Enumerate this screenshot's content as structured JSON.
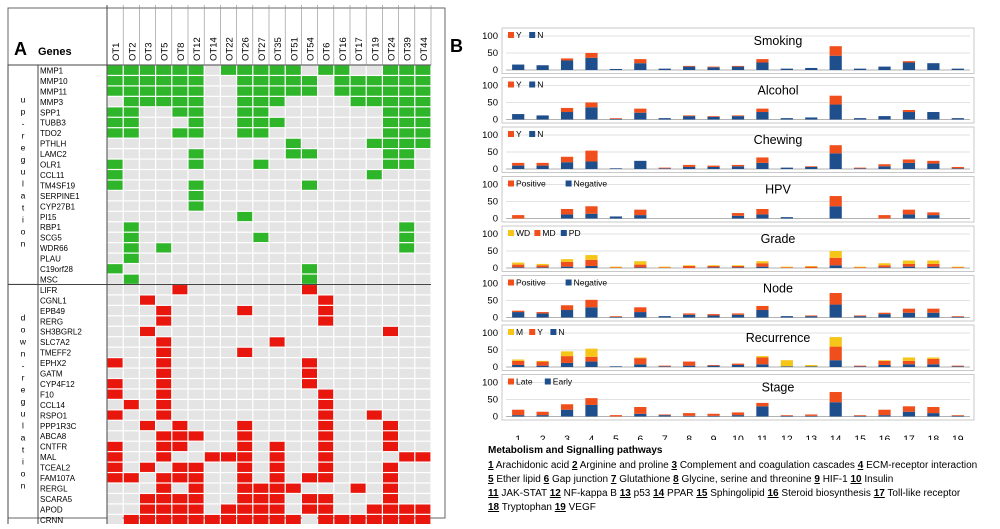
{
  "panelA": {
    "label": "A",
    "genes_header": "Genes",
    "columns": [
      "OT1",
      "OT2",
      "OT3",
      "OT5",
      "OT8",
      "OT12",
      "OT14",
      "OT22",
      "OT26",
      "OT27",
      "OT35",
      "OT51",
      "OT54",
      "OT6",
      "OT16",
      "OT17",
      "OT19",
      "OT24",
      "OT39",
      "OT44"
    ],
    "groups": [
      {
        "label": "up-regulation",
        "rows": [
          0,
          20
        ]
      },
      {
        "label": "down-regulation",
        "rows": [
          21,
          43
        ]
      }
    ],
    "genes": [
      "MMP1",
      "MMP10",
      "MMP11",
      "MMP3",
      "SPP1",
      "TUBB3",
      "TDO2",
      "PTHLH",
      "LAMC2",
      "OLR1",
      "CCL11",
      "TM4SF19",
      "SERPINE1",
      "CYP27B1",
      "PI15",
      "RBP1",
      "SCG5",
      "WDR66",
      "PLAU",
      "C19orf28",
      "MSC",
      "LIFR",
      "CGNL1",
      "EPB49",
      "RERG",
      "SH3BGRL2",
      "SLC7A2",
      "TMEFF2",
      "EPHX2",
      "GATM",
      "CYP4F12",
      "F10",
      "CCL14",
      "RSPO1",
      "PPP1R3C",
      "ABCA8",
      "CNTFR",
      "MAL",
      "TCEAL2",
      "FAM107A",
      "RERGL",
      "SCARA5",
      "APOD",
      "CRNN"
    ],
    "up_color": "#2fb52a",
    "down_color": "#e8160c",
    "empty_color": "#e4e4e4",
    "matrix": [
      "11111101111101100111",
      "11111100111110111111",
      "11111100111110111111",
      "01111100111000011111",
      "11001100110000000111",
      "11000100111000000111",
      "11001100110000000111",
      "00000000000100001111",
      "00000100000110000110",
      "10000100010000000110",
      "10000000000000001000",
      "10000100000010000000",
      "00000100000000000000",
      "00000100000000000000",
      "00000000100000000000",
      "01000000000000000010",
      "01000000010000000010",
      "01010000000000000010",
      "01000000000000000000",
      "10000000000010000000",
      "01000000000010000000",
      "00001000000010000000",
      "00100000000001000000",
      "00010000100001000000",
      "00010000000001000000",
      "00100000000000000100",
      "00010000001000000000",
      "00010000100000000000",
      "10010000000010000000",
      "00010000000010000000",
      "10010000000010000000",
      "10010000000001000000",
      "01010000000001000000",
      "10010000000001001000",
      "00101000100001000100",
      "00011100100001000100",
      "10011000101001000100",
      "10010011101001000011",
      "10101100101001000100",
      "11011100101011000100",
      "00010100111100010100",
      "00111100111011000100",
      "00111101111011001111",
      "01111111111101111111"
    ]
  },
  "panelB": {
    "label": "B",
    "pathway_title": "Metabolism and Signalling pathways",
    "pathways": [
      {
        "num": "1",
        "name": "Arachidonic acid"
      },
      {
        "num": "2",
        "name": "Arginine and proline"
      },
      {
        "num": "3",
        "name": "Complement and coagulation cascades"
      },
      {
        "num": "4",
        "name": "ECM-receptor interaction"
      },
      {
        "num": "5",
        "name": "Ether lipid"
      },
      {
        "num": "6",
        "name": "Gap junction"
      },
      {
        "num": "7",
        "name": "Glutathione"
      },
      {
        "num": "8",
        "name": "Glycine, serine and threonine"
      },
      {
        "num": "9",
        "name": "HIF-1"
      },
      {
        "num": "10",
        "name": "Insulin"
      },
      {
        "num": "11",
        "name": "JAK-STAT"
      },
      {
        "num": "12",
        "name": "NF-kappa B"
      },
      {
        "num": "13",
        "name": "p53"
      },
      {
        "num": "14",
        "name": "PPAR"
      },
      {
        "num": "15",
        "name": "Sphingolipid"
      },
      {
        "num": "16",
        "name": "Steroid biosynthesis"
      },
      {
        "num": "17",
        "name": "Toll-like receptor"
      },
      {
        "num": "18",
        "name": "Tryptophan"
      },
      {
        "num": "19",
        "name": "VEGF"
      }
    ]
  },
  "chart_data": [
    {
      "type": "bar",
      "stacked": true,
      "title": "Smoking",
      "categories": [
        "1",
        "2",
        "3",
        "4",
        "5",
        "6",
        "7",
        "8",
        "9",
        "10",
        "11",
        "12",
        "13",
        "14",
        "15",
        "16",
        "17",
        "18",
        "19"
      ],
      "ylim": [
        0,
        100
      ],
      "yticks": [
        0,
        50,
        100
      ],
      "grid": true,
      "legend": "top-left",
      "series": [
        {
          "name": "N",
          "color": "#1f4e8c",
          "values": [
            16,
            14,
            28,
            36,
            3,
            20,
            4,
            10,
            8,
            10,
            22,
            4,
            6,
            42,
            4,
            10,
            22,
            20,
            4
          ]
        },
        {
          "name": "Y",
          "color": "#f04e1a",
          "values": [
            0,
            0,
            6,
            14,
            0,
            12,
            0,
            2,
            2,
            2,
            10,
            0,
            0,
            28,
            0,
            0,
            4,
            0,
            0
          ]
        }
      ]
    },
    {
      "type": "bar",
      "stacked": true,
      "title": "Alcohol",
      "categories": [
        "1",
        "2",
        "3",
        "4",
        "5",
        "6",
        "7",
        "8",
        "9",
        "10",
        "11",
        "12",
        "13",
        "14",
        "15",
        "16",
        "17",
        "18",
        "19"
      ],
      "ylim": [
        0,
        100
      ],
      "yticks": [
        0,
        50,
        100
      ],
      "grid": true,
      "legend": "top-left",
      "series": [
        {
          "name": "N",
          "color": "#1f4e8c",
          "values": [
            16,
            12,
            22,
            36,
            2,
            20,
            4,
            10,
            8,
            10,
            22,
            4,
            6,
            44,
            4,
            10,
            22,
            22,
            4
          ]
        },
        {
          "name": "Y",
          "color": "#f04e1a",
          "values": [
            0,
            0,
            12,
            14,
            2,
            12,
            0,
            2,
            2,
            2,
            10,
            0,
            0,
            26,
            0,
            0,
            6,
            0,
            0
          ]
        }
      ]
    },
    {
      "type": "bar",
      "stacked": true,
      "title": "Chewing",
      "categories": [
        "1",
        "2",
        "3",
        "4",
        "5",
        "6",
        "7",
        "8",
        "9",
        "10",
        "11",
        "12",
        "13",
        "14",
        "15",
        "16",
        "17",
        "18",
        "19"
      ],
      "ylim": [
        0,
        100
      ],
      "yticks": [
        0,
        50,
        100
      ],
      "grid": true,
      "legend": "top-left",
      "series": [
        {
          "name": "N",
          "color": "#1f4e8c",
          "values": [
            10,
            10,
            20,
            22,
            2,
            24,
            2,
            6,
            6,
            8,
            18,
            4,
            6,
            46,
            2,
            8,
            18,
            16,
            2
          ]
        },
        {
          "name": "Y",
          "color": "#f04e1a",
          "values": [
            8,
            8,
            16,
            32,
            0,
            0,
            2,
            6,
            4,
            4,
            16,
            0,
            2,
            24,
            2,
            6,
            10,
            8,
            4
          ]
        }
      ]
    },
    {
      "type": "bar",
      "stacked": true,
      "title": "HPV",
      "categories": [
        "1",
        "2",
        "3",
        "4",
        "5",
        "6",
        "7",
        "8",
        "9",
        "10",
        "11",
        "12",
        "13",
        "14",
        "15",
        "16",
        "17",
        "18",
        "19"
      ],
      "ylim": [
        0,
        100
      ],
      "yticks": [
        0,
        50,
        100
      ],
      "grid": true,
      "legend": "top-left",
      "series": [
        {
          "name": "Negative",
          "color": "#1f4e8c",
          "values": [
            0,
            0,
            12,
            14,
            6,
            10,
            0,
            0,
            0,
            8,
            12,
            4,
            0,
            36,
            0,
            0,
            12,
            10,
            0
          ]
        },
        {
          "name": "Positive",
          "color": "#f04e1a",
          "values": [
            10,
            0,
            16,
            22,
            0,
            16,
            0,
            0,
            0,
            8,
            16,
            0,
            0,
            30,
            0,
            10,
            14,
            8,
            0
          ]
        }
      ]
    },
    {
      "type": "bar",
      "stacked": true,
      "title": "Grade",
      "categories": [
        "1",
        "2",
        "3",
        "4",
        "5",
        "6",
        "7",
        "8",
        "9",
        "10",
        "11",
        "12",
        "13",
        "14",
        "15",
        "16",
        "17",
        "18",
        "19"
      ],
      "ylim": [
        0,
        100
      ],
      "yticks": [
        0,
        50,
        100
      ],
      "grid": true,
      "legend": "top-left",
      "series": [
        {
          "name": "PD",
          "color": "#1f4e8c",
          "values": [
            2,
            2,
            4,
            6,
            0,
            2,
            0,
            0,
            2,
            2,
            4,
            0,
            0,
            8,
            0,
            2,
            4,
            4,
            0
          ]
        },
        {
          "name": "MD",
          "color": "#f04e1a",
          "values": [
            8,
            6,
            14,
            18,
            2,
            8,
            2,
            6,
            4,
            4,
            10,
            2,
            4,
            22,
            2,
            6,
            8,
            8,
            2
          ]
        },
        {
          "name": "WD",
          "color": "#f5c518",
          "values": [
            6,
            4,
            8,
            14,
            2,
            10,
            2,
            2,
            2,
            2,
            6,
            2,
            2,
            20,
            2,
            6,
            10,
            10,
            2
          ]
        }
      ]
    },
    {
      "type": "bar",
      "stacked": true,
      "title": "Node",
      "categories": [
        "1",
        "2",
        "3",
        "4",
        "5",
        "6",
        "7",
        "8",
        "9",
        "10",
        "11",
        "12",
        "13",
        "14",
        "15",
        "16",
        "17",
        "18",
        "19"
      ],
      "ylim": [
        0,
        100
      ],
      "yticks": [
        0,
        50,
        100
      ],
      "grid": true,
      "legend": "top-left",
      "series": [
        {
          "name": "Negative",
          "color": "#1f4e8c",
          "values": [
            16,
            12,
            22,
            30,
            2,
            16,
            4,
            8,
            6,
            8,
            22,
            4,
            4,
            38,
            4,
            10,
            14,
            14,
            2
          ]
        },
        {
          "name": "Positive",
          "color": "#f04e1a",
          "values": [
            4,
            4,
            14,
            22,
            2,
            14,
            0,
            4,
            4,
            4,
            12,
            0,
            2,
            34,
            2,
            4,
            12,
            12,
            2
          ]
        }
      ]
    },
    {
      "type": "bar",
      "stacked": true,
      "title": "Recurrence",
      "categories": [
        "1",
        "2",
        "3",
        "4",
        "5",
        "6",
        "7",
        "8",
        "9",
        "10",
        "11",
        "12",
        "13",
        "14",
        "15",
        "16",
        "17",
        "18",
        "19"
      ],
      "ylim": [
        0,
        100
      ],
      "yticks": [
        0,
        50,
        100
      ],
      "grid": true,
      "legend": "top-left",
      "series": [
        {
          "name": "N",
          "color": "#1f4e8c",
          "values": [
            6,
            4,
            12,
            16,
            2,
            8,
            2,
            4,
            4,
            6,
            8,
            2,
            2,
            20,
            2,
            6,
            8,
            8,
            2
          ]
        },
        {
          "name": "Y",
          "color": "#f04e1a",
          "values": [
            12,
            12,
            20,
            14,
            0,
            18,
            2,
            12,
            2,
            4,
            20,
            0,
            0,
            40,
            2,
            12,
            10,
            16,
            2
          ]
        },
        {
          "name": "M",
          "color": "#f5c518",
          "values": [
            4,
            2,
            14,
            24,
            0,
            2,
            0,
            0,
            0,
            0,
            4,
            18,
            4,
            28,
            0,
            2,
            10,
            4,
            0
          ]
        }
      ]
    },
    {
      "type": "bar",
      "stacked": true,
      "title": "Stage",
      "categories": [
        "1",
        "2",
        "3",
        "4",
        "5",
        "6",
        "7",
        "8",
        "9",
        "10",
        "11",
        "12",
        "13",
        "14",
        "15",
        "16",
        "17",
        "18",
        "19"
      ],
      "ylim": [
        0,
        100
      ],
      "yticks": [
        0,
        50,
        100
      ],
      "grid": true,
      "legend": "top-left",
      "series": [
        {
          "name": "Early",
          "color": "#1f4e8c",
          "values": [
            4,
            4,
            20,
            34,
            0,
            8,
            4,
            2,
            2,
            4,
            30,
            2,
            2,
            42,
            2,
            4,
            14,
            10,
            2
          ]
        },
        {
          "name": "Late",
          "color": "#f04e1a",
          "values": [
            16,
            10,
            16,
            20,
            4,
            20,
            2,
            8,
            6,
            8,
            10,
            2,
            4,
            30,
            2,
            16,
            16,
            18,
            2
          ]
        }
      ]
    }
  ]
}
